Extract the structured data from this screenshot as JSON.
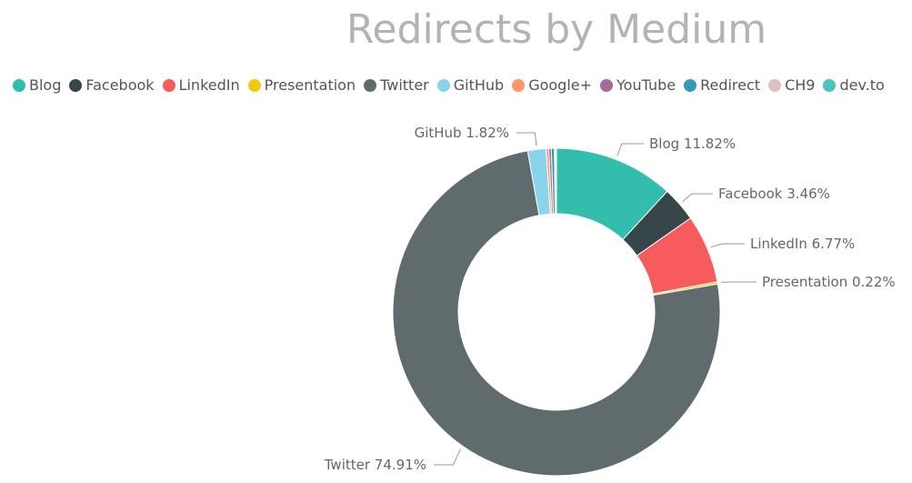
{
  "chart_data": {
    "type": "pie",
    "variant": "donut",
    "title": "Redirects by Medium",
    "legend_position": "top-left",
    "slices": [
      {
        "name": "Blog",
        "value": 11.82,
        "color": "#33bdac",
        "label": "Blog 11.82%"
      },
      {
        "name": "Facebook",
        "value": 3.46,
        "color": "#374649",
        "label": "Facebook 3.46%"
      },
      {
        "name": "LinkedIn",
        "value": 6.77,
        "color": "#f65b5e",
        "label": "LinkedIn 6.77%"
      },
      {
        "name": "Presentation",
        "value": 0.22,
        "color": "#f2c80f",
        "label": "Presentation 0.22%"
      },
      {
        "name": "Twitter",
        "value": 74.91,
        "color": "#5f6b6d",
        "label": "Twitter 74.91%"
      },
      {
        "name": "GitHub",
        "value": 1.82,
        "color": "#8ad4eb",
        "label": "GitHub 1.82%"
      },
      {
        "name": "Google+",
        "value": 0.25,
        "color": "#fe9666",
        "label": ""
      },
      {
        "name": "YouTube",
        "value": 0.25,
        "color": "#a66999",
        "label": ""
      },
      {
        "name": "Redirect",
        "value": 0.3,
        "color": "#3599b8",
        "label": ""
      },
      {
        "name": "CH9",
        "value": 0.1,
        "color": "#dfbfbf",
        "label": ""
      },
      {
        "name": "dev.to",
        "value": 0.1,
        "color": "#4ac5bb",
        "label": ""
      }
    ]
  }
}
